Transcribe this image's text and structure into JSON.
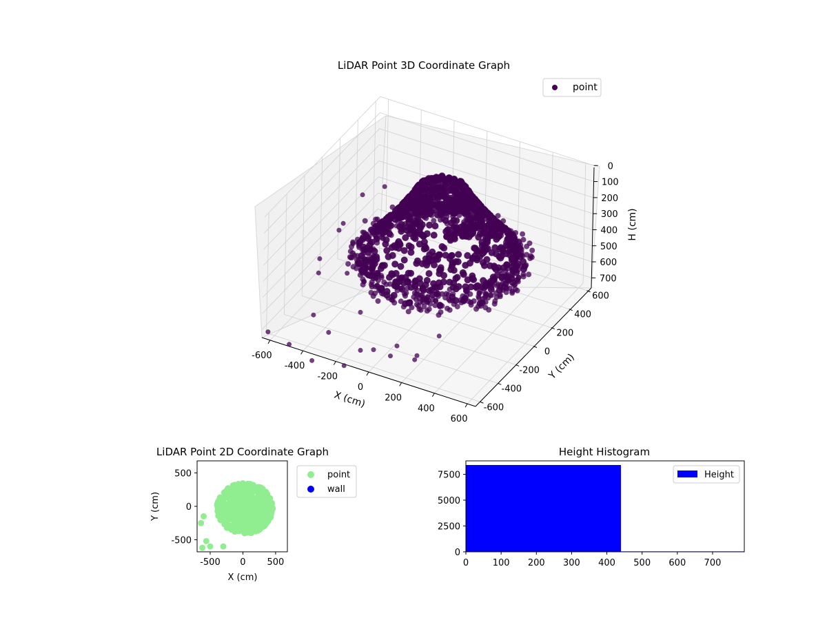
{
  "chart_data": [
    {
      "type": "scatter",
      "projection": "3d",
      "title": "LiDAR Point 3D Coordinate Graph",
      "xlabel": "X (cm)",
      "ylabel": "Y (cm)",
      "zlabel": "H (cm)",
      "xticks": [
        "-600",
        "-400",
        "-200",
        "0",
        "200",
        "400",
        "600"
      ],
      "yticks": [
        "-600",
        "-400",
        "-200",
        "0",
        "200",
        "400",
        "600"
      ],
      "zticks": [
        "0",
        "100",
        "200",
        "300",
        "400",
        "500",
        "600",
        "700"
      ],
      "xlim": [
        -650,
        650
      ],
      "ylim": [
        -650,
        650
      ],
      "zlim": [
        750,
        0
      ],
      "zaxis_inverted": true,
      "grid": true,
      "legend": {
        "position": "top-right",
        "entries": [
          "point"
        ]
      },
      "series": [
        {
          "name": "point",
          "color": "#440154",
          "dome": {
            "center_x": 50,
            "center_y": 50,
            "radius_top": 320,
            "h_top": 0,
            "h_bottom": 440,
            "radius_bottom": 460
          },
          "ring": {
            "h": 430,
            "x_range": [
              -450,
              520
            ],
            "y_range": [
              -480,
              520
            ]
          },
          "scattered_outliers": true
        }
      ]
    },
    {
      "type": "scatter",
      "title": "LiDAR Point 2D Coordinate Graph",
      "xlabel": "X (cm)",
      "ylabel": "Y (cm)",
      "xticks": [
        "-500",
        "0",
        "500"
      ],
      "yticks": [
        "-500",
        "0",
        "500"
      ],
      "xlim": [
        -700,
        680
      ],
      "ylim": [
        -680,
        680
      ],
      "legend": {
        "position": "outside-right",
        "entries": [
          "point",
          "wall"
        ]
      },
      "series": [
        {
          "name": "point",
          "color": "#90ee90",
          "region": {
            "center": [
              30,
              -30
            ],
            "radius_x": 430,
            "radius_y": 380
          }
        },
        {
          "name": "wall",
          "color": "#0000ff",
          "points": []
        }
      ]
    },
    {
      "type": "bar",
      "title": "Height Histogram",
      "xticks": [
        "0",
        "100",
        "200",
        "300",
        "400",
        "500",
        "600",
        "700"
      ],
      "yticks": [
        "0",
        "2500",
        "5000",
        "7500"
      ],
      "xlim": [
        0,
        790
      ],
      "ylim": [
        0,
        8800
      ],
      "bins": [
        {
          "start": 0,
          "end": 440,
          "count": 8400
        },
        {
          "start": 440,
          "end": 790,
          "count": 40
        }
      ],
      "color": "#0000ff",
      "legend": {
        "position": "top-right",
        "entries": [
          "Height"
        ]
      }
    }
  ]
}
